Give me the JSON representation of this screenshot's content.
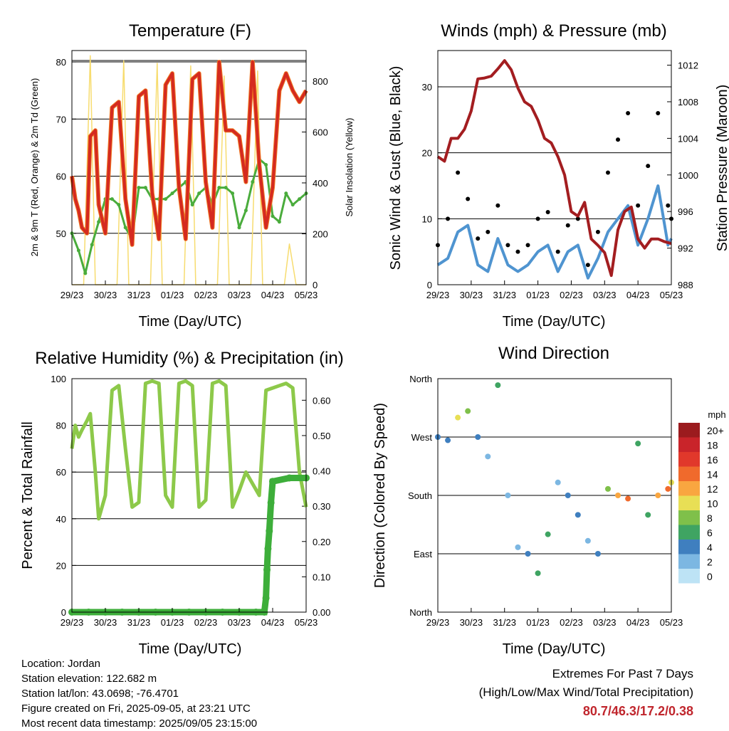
{
  "panels": {
    "temperature": {
      "title": "Temperature (F)",
      "ylabel_left": "2m & 9m T (Red, Orange) & 2m Td (Green)",
      "ylabel_right": "Solar Insolation (Yellow)",
      "xlabel": "Time (Day/UTC)"
    },
    "winds": {
      "title": "Winds (mph) & Pressure (mb)",
      "ylabel_left": "Sonic Wind & Gust (Blue, Black)",
      "ylabel_right": "Station Pressure (Maroon)",
      "xlabel": "Time (Day/UTC)"
    },
    "humidity": {
      "title": "Relative Humidity (%) & Precipitation (in)",
      "ylabel_left": "Percent & Total Rainfall",
      "xlabel": "Time (Day/UTC)"
    },
    "direction": {
      "title": "Wind Direction",
      "ylabel_left": "Direction (Colored By Speed)",
      "xlabel": "Time (Day/UTC)",
      "colorbar_title": "mph"
    }
  },
  "info": {
    "location": "Location: Jordan",
    "elevation": "Station elevation: 122.682 m",
    "latlon": "Station lat/lon: 43.0698; -76.4701",
    "created": "Figure created on Fri, 2025-09-05, at 23:21 UTC",
    "recent": "Most recent data timestamp: 2025/09/05 23:15:00"
  },
  "extremes": {
    "line1": "Extremes For Past 7 Days",
    "line2": "(High/Low/Max Wind/Total Precipitation)",
    "values": "80.7/46.3/17.2/0.38"
  },
  "colors": {
    "temp_2m": "#d42a20",
    "temp_9m": "#f07a24",
    "dewpoint": "#4aac3c",
    "solar": "#f7dc6f",
    "wind": "#4f94d0",
    "gust": "#000000",
    "pressure": "#a31d20",
    "rh": "#8dc94a",
    "precip": "#3dae3a"
  },
  "chart_data": [
    {
      "type": "line",
      "id": "temperature",
      "x_ticks": [
        "29/23",
        "30/23",
        "31/23",
        "01/23",
        "02/23",
        "03/23",
        "04/23",
        "05/23"
      ],
      "ylim": [
        41,
        82
      ],
      "yticks": [
        50,
        60,
        70,
        80
      ],
      "y2lim": [
        0,
        920
      ],
      "y2ticks": [
        0,
        200,
        400,
        600,
        800
      ],
      "series": [
        {
          "name": "2m T",
          "x": [
            0,
            0.1,
            0.2,
            0.3,
            0.45,
            0.55,
            0.7,
            0.8,
            1.0,
            1.2,
            1.4,
            1.6,
            1.8,
            2.0,
            2.2,
            2.4,
            2.6,
            2.8,
            3.0,
            3.2,
            3.4,
            3.6,
            3.8,
            4.0,
            4.2,
            4.4,
            4.6,
            4.8,
            5.0,
            5.2,
            5.4,
            5.6,
            5.8,
            6.0,
            6.2,
            6.4,
            6.6,
            6.8,
            7.0
          ],
          "values": [
            60,
            56,
            54,
            51,
            50,
            67,
            68,
            55,
            50,
            72,
            73,
            56,
            48,
            74,
            75,
            57,
            49,
            76,
            78,
            58,
            49,
            77,
            78,
            59,
            51,
            80,
            68,
            68,
            67,
            59,
            80,
            62,
            51,
            58,
            75,
            78,
            75,
            73,
            75
          ]
        },
        {
          "name": "Td",
          "x": [
            0,
            0.2,
            0.4,
            0.6,
            0.8,
            1.0,
            1.2,
            1.4,
            1.6,
            1.8,
            2.0,
            2.2,
            2.4,
            2.6,
            2.8,
            3.0,
            3.2,
            3.4,
            3.6,
            3.8,
            4.0,
            4.2,
            4.4,
            4.6,
            4.8,
            5.0,
            5.2,
            5.4,
            5.6,
            5.8,
            6.0,
            6.2,
            6.4,
            6.6,
            6.8,
            7.0
          ],
          "values": [
            50,
            47,
            43,
            48,
            52,
            56,
            56,
            55,
            51,
            49,
            58,
            58,
            56,
            56,
            56,
            57,
            58,
            59,
            55,
            57,
            58,
            55,
            58,
            58,
            57,
            51,
            54,
            59,
            63,
            62,
            53,
            52,
            57,
            55,
            56,
            57
          ]
        },
        {
          "name": "Solar",
          "axis": "right",
          "x": [
            0,
            0.35,
            0.55,
            0.7,
            1.0,
            1.35,
            1.55,
            1.7,
            2.0,
            2.35,
            2.55,
            2.7,
            3.0,
            3.35,
            3.55,
            3.7,
            4.0,
            4.35,
            4.55,
            4.7,
            5.0,
            5.35,
            5.55,
            5.7,
            6.0,
            6.35,
            6.5,
            6.7,
            7.0
          ],
          "values": [
            0,
            0,
            900,
            0,
            0,
            0,
            880,
            0,
            0,
            0,
            870,
            0,
            0,
            0,
            860,
            0,
            0,
            0,
            820,
            0,
            0,
            0,
            840,
            0,
            0,
            0,
            160,
            0,
            0
          ]
        }
      ]
    },
    {
      "type": "line",
      "id": "winds",
      "x_ticks": [
        "29/23",
        "30/23",
        "31/23",
        "01/23",
        "02/23",
        "03/23",
        "04/23",
        "05/23"
      ],
      "ylim": [
        0,
        35.5
      ],
      "yticks": [
        0,
        10,
        20,
        30
      ],
      "y2lim": [
        988,
        1013.6
      ],
      "y2ticks": [
        988,
        992,
        996,
        1000,
        1004,
        1008,
        1012
      ],
      "series": [
        {
          "name": "Wind",
          "x": [
            0,
            0.3,
            0.6,
            0.9,
            1.2,
            1.5,
            1.8,
            2.1,
            2.4,
            2.7,
            3.0,
            3.3,
            3.6,
            3.9,
            4.2,
            4.5,
            4.8,
            5.1,
            5.4,
            5.7,
            6.0,
            6.3,
            6.6,
            6.9,
            7.0
          ],
          "values": [
            3,
            4,
            8,
            9,
            3,
            2,
            7,
            3,
            2,
            3,
            5,
            6,
            2,
            5,
            6,
            1,
            4,
            8,
            10,
            12,
            6,
            10,
            15,
            6,
            7
          ]
        },
        {
          "name": "Gust",
          "x": [
            0,
            0.3,
            0.6,
            0.9,
            1.2,
            1.5,
            1.8,
            2.1,
            2.4,
            2.7,
            3.0,
            3.3,
            3.6,
            3.9,
            4.2,
            4.5,
            4.8,
            5.1,
            5.4,
            5.7,
            6.0,
            6.3,
            6.6,
            6.9,
            7.0
          ],
          "values": [
            6,
            10,
            17,
            13,
            7,
            8,
            12,
            6,
            5,
            6,
            10,
            11,
            5,
            9,
            10,
            3,
            8,
            17,
            22,
            26,
            12,
            18,
            26,
            12,
            10
          ]
        },
        {
          "name": "Pressure",
          "axis": "right",
          "x": [
            0,
            0.2,
            0.4,
            0.6,
            0.8,
            1.0,
            1.2,
            1.4,
            1.6,
            1.8,
            2.0,
            2.2,
            2.4,
            2.6,
            2.8,
            3.0,
            3.2,
            3.4,
            3.6,
            3.8,
            4.0,
            4.2,
            4.4,
            4.6,
            4.8,
            5.0,
            5.2,
            5.4,
            5.6,
            5.8,
            6.0,
            6.2,
            6.4,
            6.6,
            6.8,
            7.0
          ],
          "values": [
            1002,
            1001.5,
            1004,
            1004,
            1005,
            1007,
            1010.5,
            1010.6,
            1010.8,
            1011.6,
            1012.5,
            1011.5,
            1009.5,
            1008,
            1007.5,
            1006,
            1004,
            1003.5,
            1002,
            1000,
            996,
            995.5,
            997,
            993,
            992.3,
            991.5,
            989,
            994,
            996,
            996.5,
            993,
            992,
            993,
            993,
            992.7,
            992.5
          ]
        }
      ]
    },
    {
      "type": "line",
      "id": "humidity",
      "x_ticks": [
        "29/23",
        "30/23",
        "31/23",
        "01/23",
        "02/23",
        "03/23",
        "04/23",
        "05/23"
      ],
      "ylim": [
        0,
        100
      ],
      "yticks": [
        0,
        20,
        40,
        60,
        80,
        100
      ],
      "y2lim": [
        0,
        0.6611
      ],
      "y2ticks": [
        0.0,
        0.1,
        0.2,
        0.3,
        0.4,
        0.5,
        0.6
      ],
      "series": [
        {
          "name": "RH",
          "x": [
            0,
            0.1,
            0.2,
            0.3,
            0.45,
            0.55,
            0.7,
            0.8,
            1.0,
            1.2,
            1.4,
            1.6,
            1.8,
            2.0,
            2.2,
            2.4,
            2.6,
            2.8,
            3.0,
            3.2,
            3.4,
            3.6,
            3.8,
            4.0,
            4.2,
            4.4,
            4.6,
            4.8,
            5.0,
            5.2,
            5.4,
            5.6,
            5.8,
            6.0,
            6.2,
            6.4,
            6.6,
            6.8,
            7.0
          ],
          "values": [
            70,
            80,
            75,
            78,
            82,
            85,
            60,
            40,
            50,
            95,
            97,
            70,
            45,
            47,
            98,
            99,
            98,
            50,
            45,
            98,
            99,
            97,
            45,
            48,
            98,
            99,
            97,
            45,
            52,
            60,
            55,
            50,
            95,
            96,
            97,
            98,
            96,
            60,
            45
          ]
        },
        {
          "name": "Rain",
          "axis": "right",
          "x": [
            0,
            0.5,
            1.0,
            1.5,
            2.0,
            2.5,
            3.0,
            3.5,
            4.0,
            4.5,
            5.0,
            5.5,
            5.75,
            5.8,
            5.83,
            5.86,
            5.9,
            5.95,
            6.0,
            6.5,
            7.0
          ],
          "values": [
            0,
            0,
            0,
            0,
            0,
            0,
            0,
            0,
            0,
            0,
            0,
            0,
            0,
            0.04,
            0.12,
            0.18,
            0.23,
            0.31,
            0.37,
            0.38,
            0.38
          ]
        }
      ]
    },
    {
      "type": "scatter",
      "id": "direction",
      "x_ticks": [
        "29/23",
        "30/23",
        "31/23",
        "01/23",
        "02/23",
        "03/23",
        "04/23",
        "05/23"
      ],
      "yticks_labels": [
        "North",
        "East",
        "South",
        "West",
        "North"
      ],
      "ylim": [
        0,
        360
      ],
      "colorbar": {
        "labels": [
          "20+",
          "18",
          "16",
          "14",
          "12",
          "10",
          "8",
          "6",
          "4",
          "2",
          "0"
        ],
        "colors": [
          "#9b1b1e",
          "#c9242a",
          "#e1382b",
          "#f06a2c",
          "#f9a640",
          "#e8df55",
          "#7fc04a",
          "#3fa462",
          "#3f7fbf",
          "#7cb7e2",
          "#bde3f5"
        ]
      },
      "series": [
        {
          "name": "Direction",
          "x": [
            0,
            0.3,
            0.6,
            0.9,
            1.2,
            1.5,
            1.8,
            2.1,
            2.4,
            2.7,
            3.0,
            3.3,
            3.6,
            3.9,
            4.2,
            4.5,
            4.8,
            5.1,
            5.4,
            5.7,
            6.0,
            6.3,
            6.6,
            6.9,
            7.0
          ],
          "values": [
            270,
            265,
            300,
            310,
            270,
            240,
            350,
            180,
            100,
            90,
            60,
            120,
            200,
            180,
            150,
            110,
            90,
            190,
            180,
            175,
            260,
            150,
            180,
            190,
            200
          ],
          "speeds": [
            3,
            4,
            10,
            8,
            3,
            2,
            6,
            2,
            1,
            3,
            5,
            5,
            1,
            4,
            4,
            1,
            3,
            8,
            11,
            13,
            6,
            5,
            12,
            14,
            10
          ]
        }
      ]
    }
  ]
}
